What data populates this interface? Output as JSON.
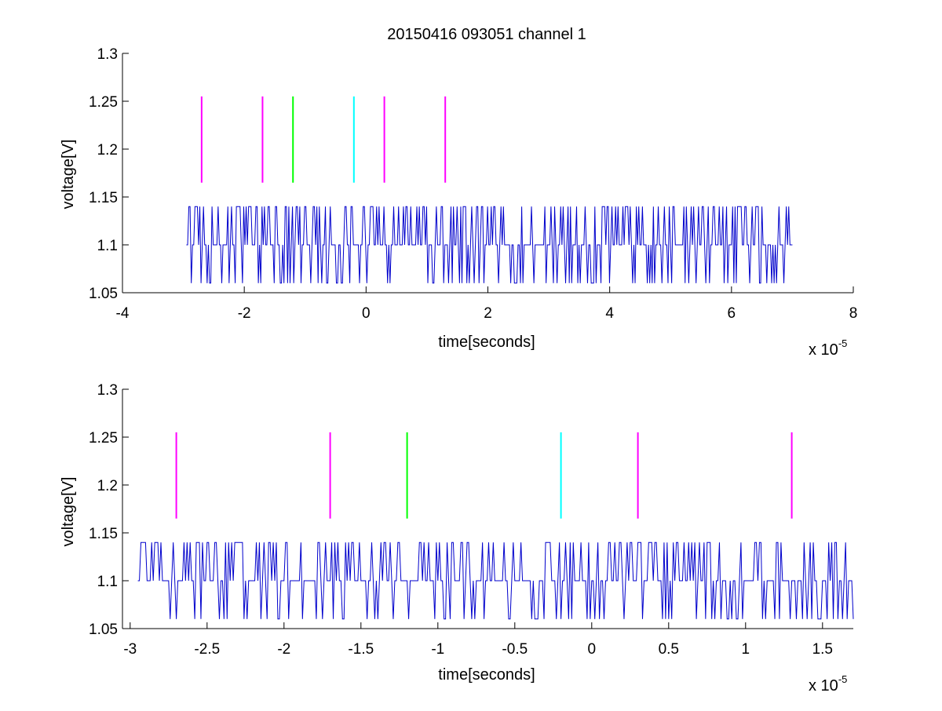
{
  "chart_data": [
    {
      "type": "line",
      "title": "20150416 093051 channel 1",
      "xlabel": "time[seconds]",
      "ylabel": "voltage[V]",
      "x_multiplier_text": "x 10",
      "x_multiplier_exponent": "-5",
      "xlim": [
        -4,
        8
      ],
      "ylim": [
        1.05,
        1.3
      ],
      "xticks": [
        "-4",
        "-2",
        "0",
        "2",
        "4",
        "6",
        "8"
      ],
      "yticks": [
        "1.05",
        "1.1",
        "1.15",
        "1.2",
        "1.25",
        "1.3"
      ],
      "grid": false,
      "signal": {
        "color": "#0000cc",
        "x_range": [
          -2.95,
          7.0
        ],
        "levels": [
          1.06,
          1.1,
          1.14
        ],
        "baseline": 1.1
      },
      "markers": [
        {
          "x": -2.7,
          "y_range": [
            1.165,
            1.255
          ],
          "color": "#ff00ff"
        },
        {
          "x": -1.7,
          "y_range": [
            1.165,
            1.255
          ],
          "color": "#ff00ff"
        },
        {
          "x": -1.2,
          "y_range": [
            1.165,
            1.255
          ],
          "color": "#00ff00"
        },
        {
          "x": -0.2,
          "y_range": [
            1.165,
            1.255
          ],
          "color": "#00ffff"
        },
        {
          "x": 0.3,
          "y_range": [
            1.165,
            1.255
          ],
          "color": "#ff00ff"
        },
        {
          "x": 1.3,
          "y_range": [
            1.165,
            1.255
          ],
          "color": "#ff00ff"
        }
      ]
    },
    {
      "type": "line",
      "title": "",
      "xlabel": "time[seconds]",
      "ylabel": "voltage[V]",
      "x_multiplier_text": "x 10",
      "x_multiplier_exponent": "-5",
      "xlim": [
        -3.05,
        1.7
      ],
      "ylim": [
        1.05,
        1.3
      ],
      "xticks": [
        "-3",
        "-2.5",
        "-2",
        "-1.5",
        "-1",
        "-0.5",
        "0",
        "0.5",
        "1",
        "1.5"
      ],
      "yticks": [
        "1.05",
        "1.1",
        "1.15",
        "1.2",
        "1.25",
        "1.3"
      ],
      "grid": false,
      "signal": {
        "color": "#0000cc",
        "x_range": [
          -2.95,
          1.7
        ],
        "levels": [
          1.06,
          1.1,
          1.14
        ],
        "baseline": 1.1
      },
      "markers": [
        {
          "x": -2.7,
          "y_range": [
            1.165,
            1.255
          ],
          "color": "#ff00ff"
        },
        {
          "x": -1.7,
          "y_range": [
            1.165,
            1.255
          ],
          "color": "#ff00ff"
        },
        {
          "x": -1.2,
          "y_range": [
            1.165,
            1.255
          ],
          "color": "#00ff00"
        },
        {
          "x": -0.2,
          "y_range": [
            1.165,
            1.255
          ],
          "color": "#00ffff"
        },
        {
          "x": 0.3,
          "y_range": [
            1.165,
            1.255
          ],
          "color": "#ff00ff"
        },
        {
          "x": 1.3,
          "y_range": [
            1.165,
            1.255
          ],
          "color": "#ff00ff"
        }
      ]
    }
  ]
}
